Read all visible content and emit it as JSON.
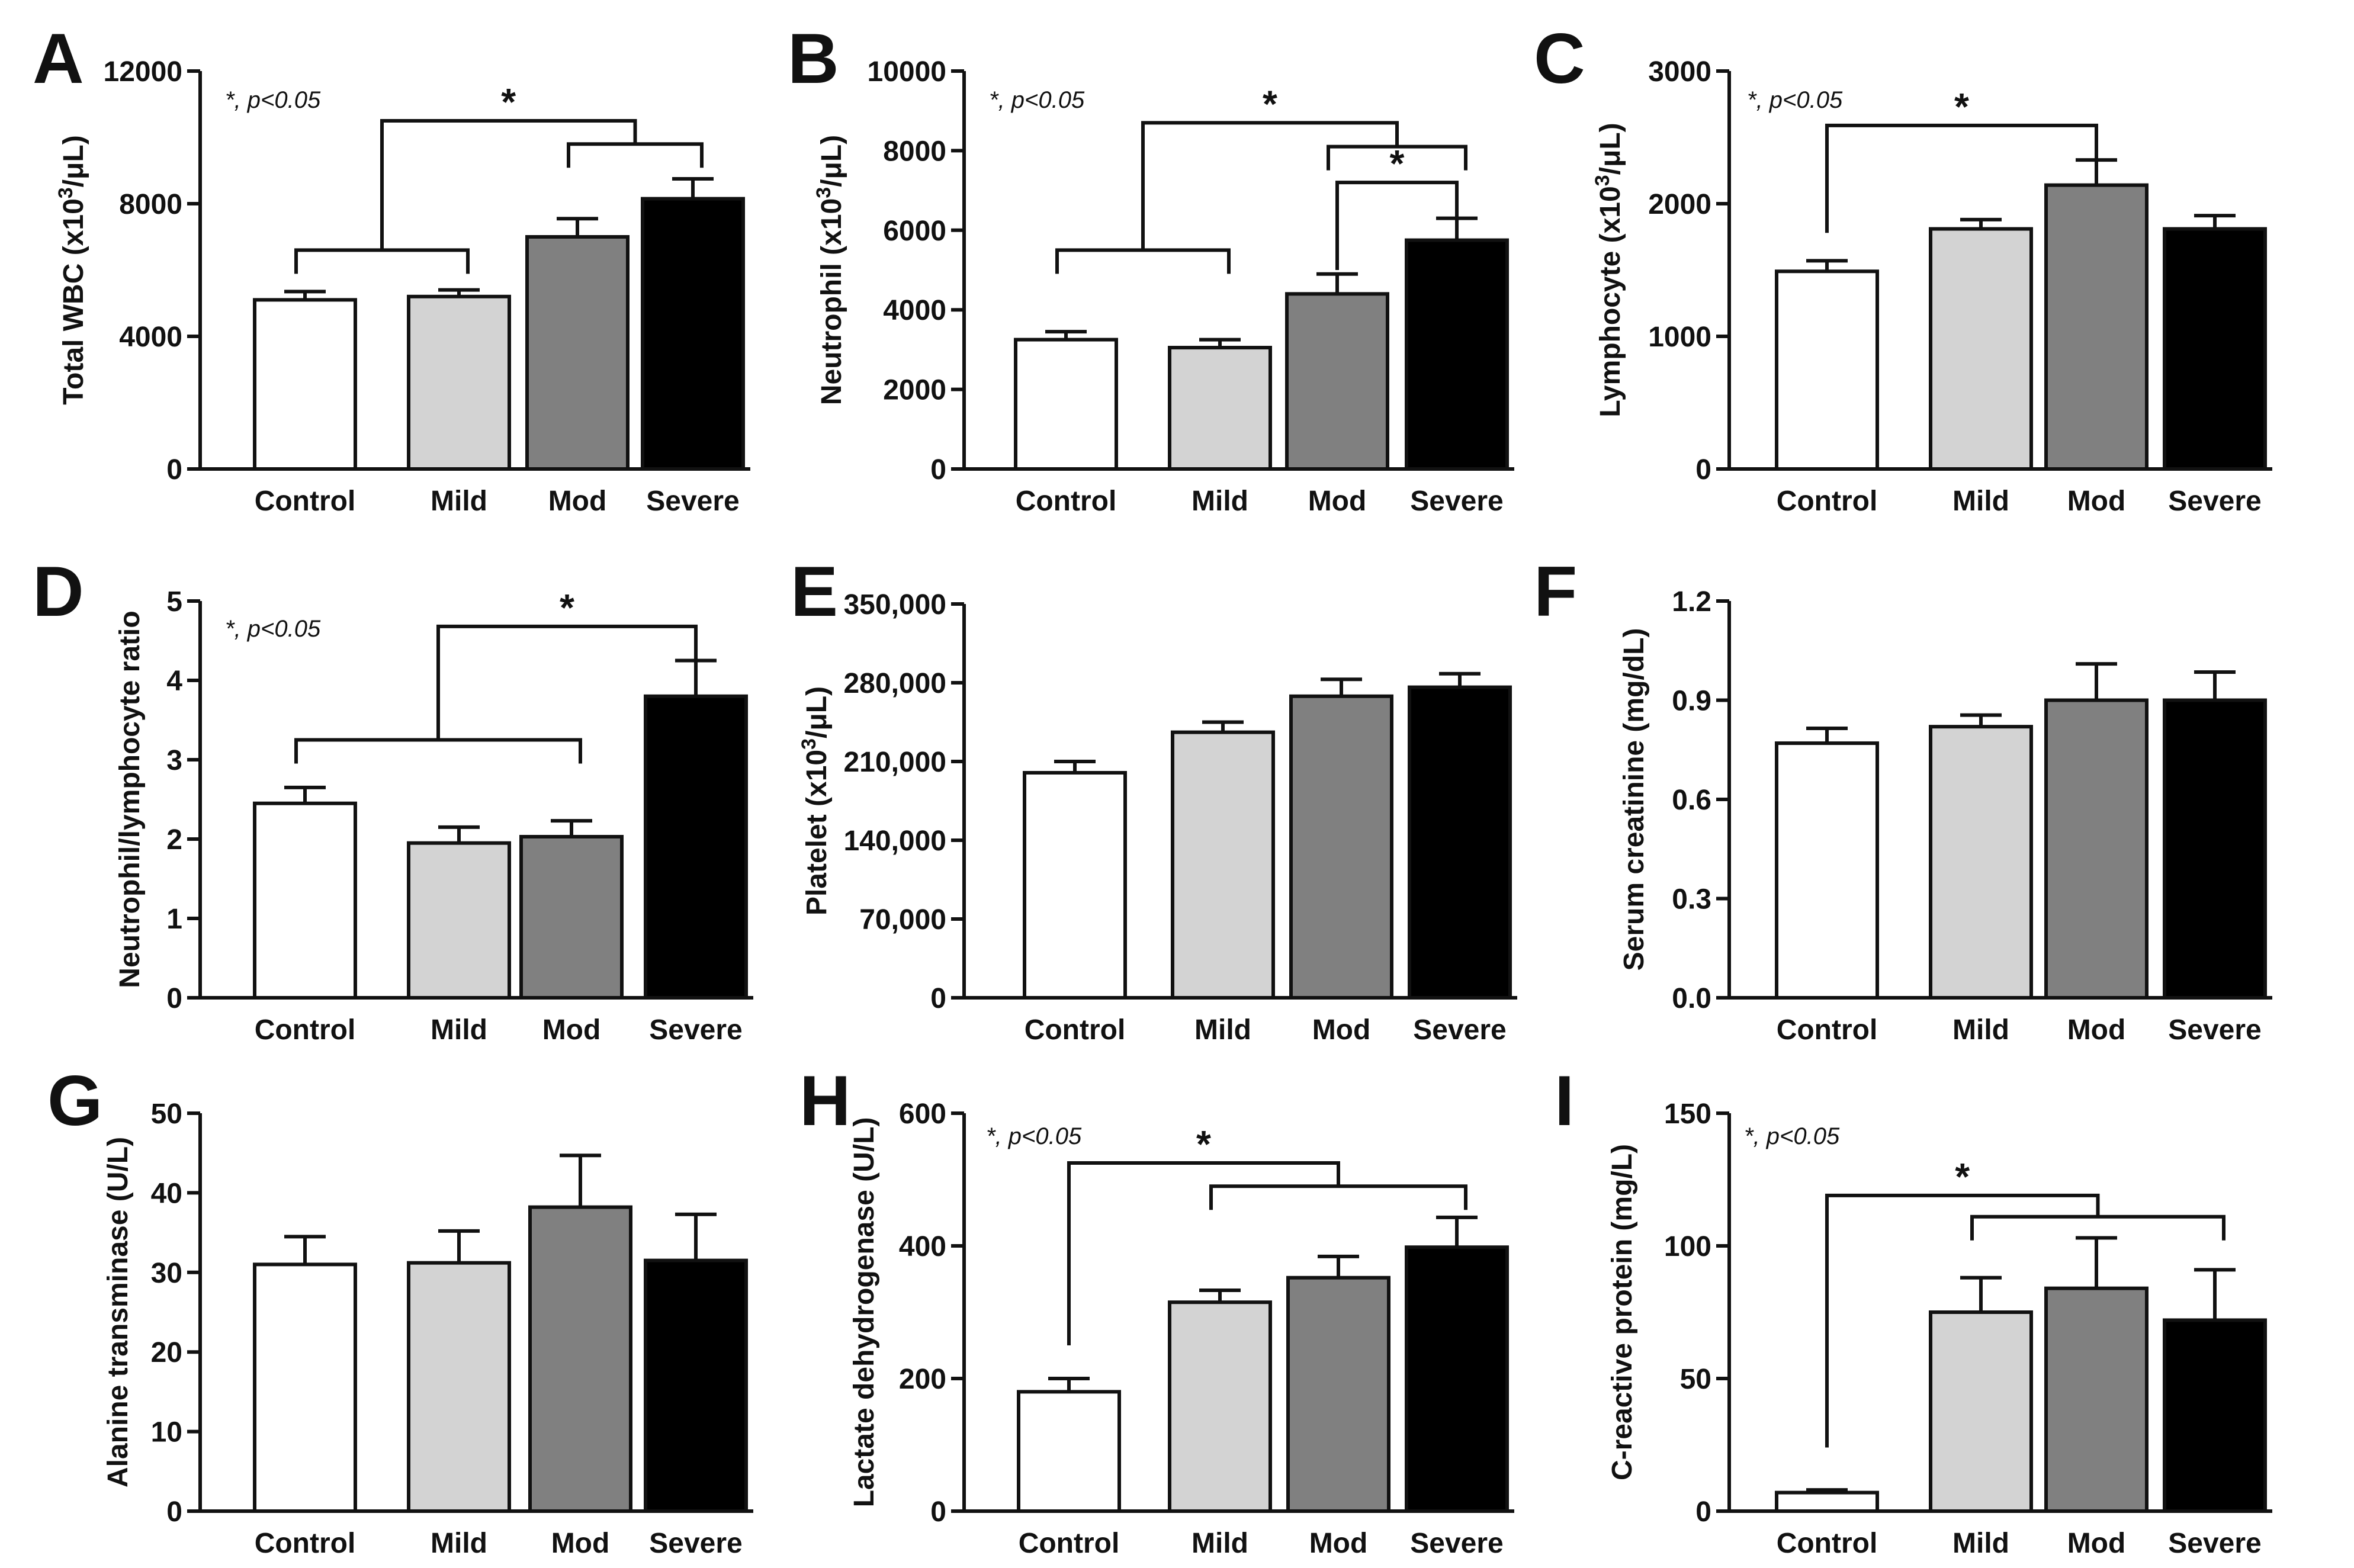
{
  "chart_data": [
    {
      "panel": "A",
      "type": "bar",
      "note": "*, p<0.05",
      "categories": [
        "Control",
        "Mild",
        "Mod",
        "Severe"
      ],
      "values": [
        5100,
        5200,
        7000,
        8150
      ],
      "errors": [
        250,
        200,
        550,
        600
      ],
      "ylabel_main": "Total WBC (x10",
      "ylabel_sup": "3",
      "ylabel_tail": "/μL)",
      "ylim": [
        0,
        12000
      ],
      "yticks": [
        {
          "v": 0,
          "label": "0"
        },
        {
          "v": 4000,
          "label": "4000"
        },
        {
          "v": 8000,
          "label": "8000"
        },
        {
          "v": 12000,
          "label": "12000"
        }
      ],
      "colors": [
        "#ffffff",
        "#d3d3d3",
        "#808080",
        "#000000"
      ],
      "brackets": [
        {
          "left_group": [
            0,
            1
          ],
          "left_base": 6600,
          "right_group": [
            2,
            3
          ],
          "right_base": 9800,
          "top": 10500,
          "star": "*"
        }
      ]
    },
    {
      "panel": "B",
      "type": "bar",
      "note": "*, p<0.05",
      "categories": [
        "Control",
        "Mild",
        "Mod",
        "Severe"
      ],
      "values": [
        3250,
        3050,
        4400,
        5750
      ],
      "errors": [
        200,
        200,
        500,
        550
      ],
      "ylabel_main": "Neutrophil (x10",
      "ylabel_sup": "3",
      "ylabel_tail": "/μL)",
      "ylim": [
        0,
        10000
      ],
      "yticks": [
        {
          "v": 0,
          "label": "0"
        },
        {
          "v": 2000,
          "label": "2000"
        },
        {
          "v": 4000,
          "label": "4000"
        },
        {
          "v": 6000,
          "label": "6000"
        },
        {
          "v": 8000,
          "label": "8000"
        },
        {
          "v": 10000,
          "label": "10000"
        }
      ],
      "colors": [
        "#ffffff",
        "#d3d3d3",
        "#808080",
        "#000000"
      ],
      "brackets": [
        {
          "left_group": [
            0,
            1
          ],
          "left_base": 5500,
          "right_group": [
            2,
            3
          ],
          "right_base": 8100,
          "top": 8700,
          "star": "*"
        },
        {
          "left_group": [
            2
          ],
          "left_base": 5000,
          "right_group": [
            3
          ],
          "right_base": 6500,
          "top": 7200,
          "star": "*"
        }
      ]
    },
    {
      "panel": "C",
      "type": "bar",
      "note": "*, p<0.05",
      "categories": [
        "Control",
        "Mild",
        "Mod",
        "Severe"
      ],
      "values": [
        1490,
        1810,
        2140,
        1810
      ],
      "errors": [
        80,
        70,
        190,
        100
      ],
      "ylabel_main": "Lymphocyte (x10",
      "ylabel_sup": "3",
      "ylabel_tail": "/μL)",
      "ylim": [
        0,
        3000
      ],
      "yticks": [
        {
          "v": 0,
          "label": "0"
        },
        {
          "v": 1000,
          "label": "1000"
        },
        {
          "v": 2000,
          "label": "2000"
        },
        {
          "v": 3000,
          "label": "3000"
        }
      ],
      "colors": [
        "#ffffff",
        "#d3d3d3",
        "#808080",
        "#000000"
      ],
      "brackets": [
        {
          "left_group": [
            0
          ],
          "left_base": 1780,
          "right_group": [
            2
          ],
          "right_base": 2420,
          "top": 2590,
          "star": "*"
        }
      ]
    },
    {
      "panel": "D",
      "type": "bar",
      "note": "*, p<0.05",
      "categories": [
        "Control",
        "Mild",
        "Mod",
        "Severe"
      ],
      "values": [
        2.45,
        1.95,
        2.03,
        3.8
      ],
      "errors": [
        0.2,
        0.2,
        0.2,
        0.45
      ],
      "ylabel_main": "Neutrophil/lymphocyte ratio",
      "ylabel_sup": "",
      "ylabel_tail": "",
      "ylim": [
        0,
        5
      ],
      "yticks": [
        {
          "v": 0,
          "label": "0"
        },
        {
          "v": 1,
          "label": "1"
        },
        {
          "v": 2,
          "label": "2"
        },
        {
          "v": 3,
          "label": "3"
        },
        {
          "v": 4,
          "label": "4"
        },
        {
          "v": 5,
          "label": "5"
        }
      ],
      "colors": [
        "#ffffff",
        "#d3d3d3",
        "#808080",
        "#000000"
      ],
      "brackets": [
        {
          "left_group": [
            0,
            1,
            2
          ],
          "left_base": 3.25,
          "right_group": [
            3
          ],
          "right_base": 4.4,
          "top": 4.68,
          "star": "*"
        }
      ]
    },
    {
      "panel": "E",
      "type": "bar",
      "note": "",
      "categories": [
        "Control",
        "Mild",
        "Mod",
        "Severe"
      ],
      "values": [
        200000,
        236000,
        268000,
        276000
      ],
      "errors": [
        10000,
        9000,
        15000,
        12000
      ],
      "ylabel_main": "Platelet (x10",
      "ylabel_sup": "3",
      "ylabel_tail": "/μL)",
      "ylim": [
        0,
        350000
      ],
      "yticks": [
        {
          "v": 0,
          "label": "0"
        },
        {
          "v": 70000,
          "label": "70,000"
        },
        {
          "v": 140000,
          "label": "140,000"
        },
        {
          "v": 210000,
          "label": "210,000"
        },
        {
          "v": 280000,
          "label": "280,000"
        },
        {
          "v": 350000,
          "label": "350,000"
        }
      ],
      "colors": [
        "#ffffff",
        "#d3d3d3",
        "#808080",
        "#000000"
      ],
      "brackets": []
    },
    {
      "panel": "F",
      "type": "bar",
      "note": "",
      "categories": [
        "Control",
        "Mild",
        "Mod",
        "Severe"
      ],
      "values": [
        0.77,
        0.82,
        0.9,
        0.9
      ],
      "errors": [
        0.045,
        0.035,
        0.11,
        0.085
      ],
      "ylabel_main": "Serum creatinine (mg/dL)",
      "ylabel_sup": "",
      "ylabel_tail": "",
      "ylim": [
        0,
        1.2
      ],
      "yticks": [
        {
          "v": 0,
          "label": "0.0"
        },
        {
          "v": 0.3,
          "label": "0.3"
        },
        {
          "v": 0.6,
          "label": "0.6"
        },
        {
          "v": 0.9,
          "label": "0.9"
        },
        {
          "v": 1.2,
          "label": "1.2"
        }
      ],
      "colors": [
        "#ffffff",
        "#d3d3d3",
        "#808080",
        "#000000"
      ],
      "brackets": []
    },
    {
      "panel": "G",
      "type": "bar",
      "note": "",
      "categories": [
        "Control",
        "Mild",
        "Mod",
        "Severe"
      ],
      "values": [
        31,
        31.2,
        38.2,
        31.5
      ],
      "errors": [
        3.5,
        4,
        6.5,
        5.8
      ],
      "ylabel_main": "Alanine transminase (U/L)",
      "ylabel_sup": "",
      "ylabel_tail": "",
      "ylim": [
        0,
        50
      ],
      "yticks": [
        {
          "v": 0,
          "label": "0"
        },
        {
          "v": 10,
          "label": "10"
        },
        {
          "v": 20,
          "label": "20"
        },
        {
          "v": 30,
          "label": "30"
        },
        {
          "v": 40,
          "label": "40"
        },
        {
          "v": 50,
          "label": "50"
        }
      ],
      "colors": [
        "#ffffff",
        "#d3d3d3",
        "#808080",
        "#000000"
      ],
      "brackets": []
    },
    {
      "panel": "H",
      "type": "bar",
      "note": "*, p<0.05",
      "categories": [
        "Control",
        "Mild",
        "Mod",
        "Severe"
      ],
      "values": [
        180,
        315,
        352,
        398
      ],
      "errors": [
        20,
        18,
        32,
        45
      ],
      "ylabel_main": "Lactate dehydrogenase (U/L)",
      "ylabel_sup": "",
      "ylabel_tail": "",
      "ylim": [
        0,
        600
      ],
      "yticks": [
        {
          "v": 0,
          "label": "0"
        },
        {
          "v": 200,
          "label": "200"
        },
        {
          "v": 400,
          "label": "400"
        },
        {
          "v": 600,
          "label": "600"
        }
      ],
      "colors": [
        "#ffffff",
        "#d3d3d3",
        "#808080",
        "#000000"
      ],
      "brackets": [
        {
          "left_group": [
            0
          ],
          "left_base": 250,
          "right_group": [
            1,
            2,
            3
          ],
          "right_base": 490,
          "top": 525,
          "star": "*"
        }
      ]
    },
    {
      "panel": "I",
      "type": "bar",
      "note": "*, p<0.05",
      "categories": [
        "Control",
        "Mild",
        "Mod",
        "Severe"
      ],
      "values": [
        7,
        75,
        84,
        72
      ],
      "errors": [
        1,
        13,
        19,
        19
      ],
      "ylabel_main": "C-reactive protein (mg/L)",
      "ylabel_sup": "",
      "ylabel_tail": "",
      "ylim": [
        0,
        150
      ],
      "yticks": [
        {
          "v": 0,
          "label": "0"
        },
        {
          "v": 50,
          "label": "50"
        },
        {
          "v": 100,
          "label": "100"
        },
        {
          "v": 150,
          "label": "150"
        }
      ],
      "colors": [
        "#ffffff",
        "#d3d3d3",
        "#808080",
        "#000000"
      ],
      "brackets": [
        {
          "left_group": [
            0
          ],
          "left_base": 24,
          "right_group": [
            1,
            2,
            3
          ],
          "right_base": 111,
          "top": 119,
          "star": "*"
        }
      ]
    }
  ]
}
